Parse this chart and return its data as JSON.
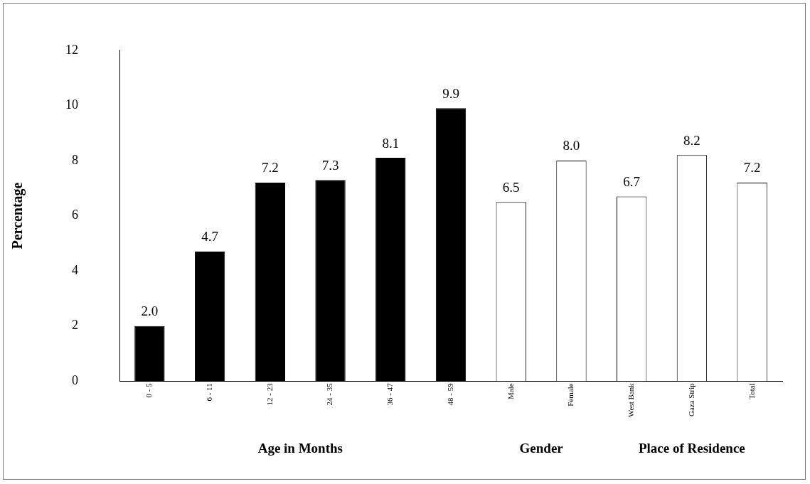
{
  "chart_data": {
    "type": "bar",
    "ylabel": "Percentage",
    "categories": [
      "0 - 5",
      "6 - 11",
      "12 - 23",
      "24 - 35",
      "36 - 47",
      "48 - 59",
      "Male",
      "Female",
      "West Bank",
      "Gaza Strip",
      "Total"
    ],
    "values": [
      2.0,
      4.7,
      7.2,
      7.3,
      8.1,
      9.9,
      6.5,
      8.0,
      6.7,
      8.2,
      7.2
    ],
    "colors": [
      "#000000",
      "#000000",
      "#000000",
      "#000000",
      "#000000",
      "#000000",
      "#ffffff",
      "#ffffff",
      "#ffffff",
      "#ffffff",
      "#ffffff"
    ],
    "value_labels": [
      "2.0",
      "4.7",
      "7.2",
      "7.3",
      "8.1",
      "9.9",
      "6.5",
      "8.0",
      "6.7",
      "8.2",
      "7.2"
    ],
    "ylim": [
      0,
      12
    ],
    "yticks": [
      0,
      2,
      4,
      6,
      8,
      10,
      12
    ],
    "grid": false,
    "legend": false,
    "annotations": [
      "Age in Months",
      "Gender",
      "Place of Residence"
    ]
  }
}
